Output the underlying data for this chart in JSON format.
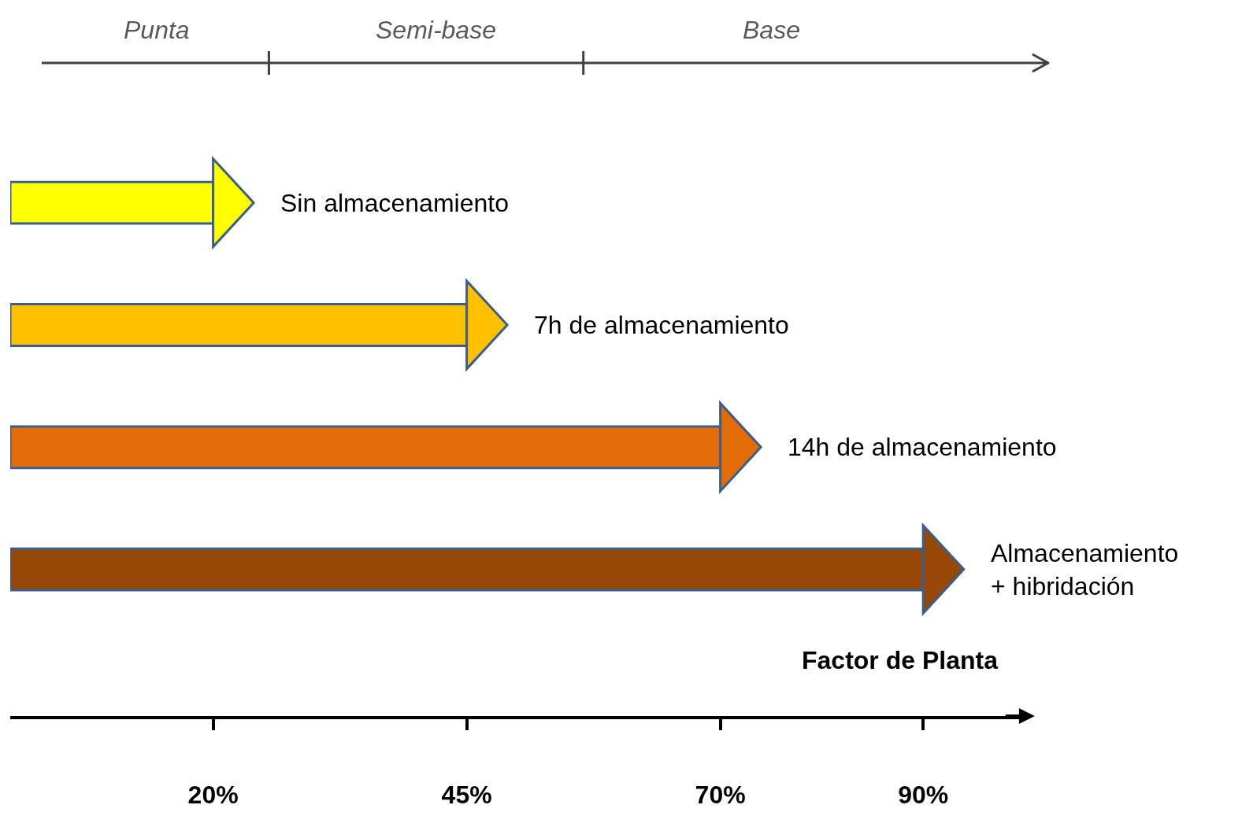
{
  "chart_data": {
    "type": "bar",
    "orientation": "horizontal",
    "xlabel": "Factor de Planta",
    "categories": [
      "Sin almacenamiento",
      "7h de almacenamiento",
      "14h de almacenamiento",
      "Almacenamiento\n+ hibridación"
    ],
    "values": [
      20,
      45,
      70,
      90
    ],
    "colors": [
      "#ffff00",
      "#ffc000",
      "#e36c09",
      "#974706"
    ],
    "xlim": [
      0,
      100
    ],
    "xticks": [
      {
        "value": 20,
        "label": "20%"
      },
      {
        "value": 45,
        "label": "45%"
      },
      {
        "value": 70,
        "label": "70%"
      },
      {
        "value": 90,
        "label": "90%"
      }
    ],
    "annotations": [
      "Punta",
      "Semi-base",
      "Base"
    ],
    "grid": false,
    "tick_labels": "x"
  }
}
